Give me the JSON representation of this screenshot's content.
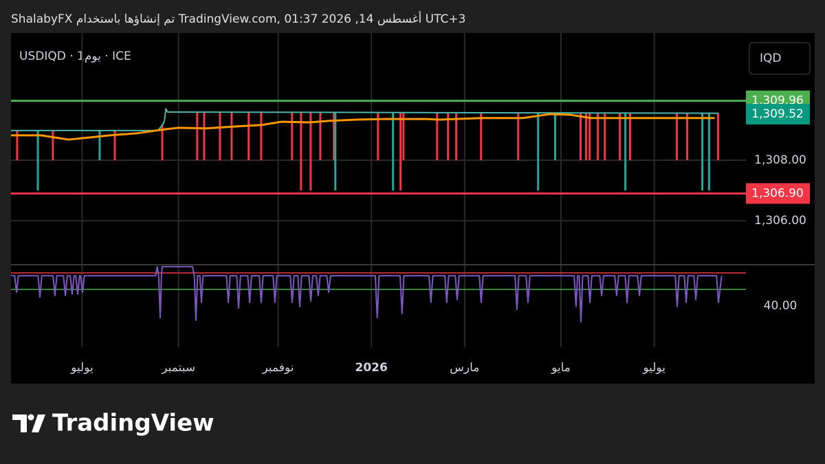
{
  "header": "ShalabyFX تم إنشاؤها باستخدام TradingView.com, 01:37 2026 ,14 أغسطس UTC+3",
  "logo": "TradingView",
  "chart_data": [
    {
      "type": "line",
      "title": "USDIQD · 1يوم · ICE",
      "currency": "IQD",
      "xlim": [
        0,
        465
      ],
      "xticks": [
        {
          "value": 45,
          "label": "يوليو"
        },
        {
          "value": 106,
          "label": "سبتمبر"
        },
        {
          "value": 169,
          "label": "نوفمبر"
        },
        {
          "value": 228,
          "label": "2026"
        },
        {
          "value": 287,
          "label": "مارس"
        },
        {
          "value": 348,
          "label": "مايو"
        },
        {
          "value": 407,
          "label": "يوليو"
        }
      ],
      "ylim": [
        1304.55,
        1312.2
      ],
      "yticks": [
        {
          "value": 1308,
          "label": "1,308.00"
        },
        {
          "value": 1306,
          "label": "1,306.00"
        }
      ],
      "grid": true,
      "hlines": [
        {
          "value": 1309.96,
          "label": "1,309.96",
          "color": "#4caf50"
        },
        {
          "value": 1306.9,
          "label": "1,306.90",
          "color": "#f23645"
        }
      ],
      "price_tags": [
        {
          "value": 1309.52,
          "label": "1,309.52",
          "color": "#089981"
        }
      ],
      "series": [
        {
          "style": "line",
          "color": "#4db6ac",
          "x": [
            0,
            93,
            95,
            97,
            98,
            99,
            447.6
          ],
          "values": [
            1308.98,
            1308.98,
            1309.11,
            1309.27,
            1309.7,
            1309.59,
            1309.55
          ]
        },
        {
          "style": "line",
          "color": "#ff9800",
          "x": [
            0,
            19.1,
            27.8,
            36.5,
            49.6,
            62.6,
            80,
            97.4,
            106.1,
            123.5,
            140.9,
            158.3,
            171.3,
            188.7,
            201.7,
            219.1,
            236.5,
            262.6,
            271.3,
            297.4,
            323.5,
            340.9,
            353.9,
            367,
            445.2
          ],
          "values": [
            1308.82,
            1308.82,
            1308.75,
            1308.68,
            1308.75,
            1308.82,
            1308.89,
            1309.02,
            1309.07,
            1309.05,
            1309.11,
            1309.16,
            1309.27,
            1309.25,
            1309.3,
            1309.34,
            1309.36,
            1309.36,
            1309.34,
            1309.39,
            1309.39,
            1309.52,
            1309.5,
            1309.39,
            1309.39
          ]
        },
        {
          "style": "spike",
          "color": "#f23645",
          "x": [
            3.9,
            26.5,
            65.7,
            95.7,
            117.8,
            122.2,
            132.2,
            139.6,
            150.4,
            158.3,
            177.8,
            183.5,
            189.6,
            195.7,
            204.3,
            232.2,
            246.5,
            248.3,
            269.6,
            276.5,
            281.7,
            297.4,
            320.9,
            360.4,
            363.9,
            366.1,
            371.3,
            375.7,
            385.2,
            391.7,
            421.3,
            427.8,
            447.4
          ],
          "values": [
            1308,
            1308,
            1308,
            1308,
            1308,
            1308,
            1308,
            1308,
            1308,
            1308,
            1308,
            1307,
            1307,
            1308,
            1308,
            1308,
            1307,
            1308,
            1308,
            1308,
            1308,
            1308,
            1308,
            1308,
            1308,
            1308,
            1308,
            1308,
            1308,
            1308,
            1308,
            1308,
            1308
          ]
        },
        {
          "style": "spike",
          "color": "#26a69a",
          "x": [
            17,
            56.1,
            205.2,
            241.7,
            333.5,
            344.3,
            388.7,
            437.4,
            441.7
          ],
          "values": [
            1307,
            1308,
            1307,
            1307,
            1307,
            1308,
            1307,
            1307,
            1307
          ]
        }
      ]
    },
    {
      "type": "line",
      "ylim": [
        15,
        65
      ],
      "yticks": [
        {
          "value": 40,
          "label": "40.00"
        }
      ],
      "hlines": [
        {
          "value": 60,
          "color": "#f23645"
        },
        {
          "value": 50,
          "color": "#4caf50"
        }
      ],
      "series": [
        {
          "style": "line",
          "color": "#7e57c2",
          "x": [
            0,
            2.3,
            3.5,
            4.7,
            17.1,
            18.3,
            19.5,
            26.6,
            27.8,
            29,
            33.2,
            34.4,
            35.6,
            37.5,
            38.7,
            39.9,
            41,
            42.2,
            43.4,
            44,
            45.2,
            46.4,
            91.5,
            92.6,
            93.4,
            94.4,
            95.2,
            95.7,
            97,
            104,
            114.8,
            116,
            117,
            118,
            119.5,
            120.5,
            121.5,
            136.3,
            137.5,
            138.7,
            142.8,
            144,
            145.2,
            149.8,
            151,
            152.2,
            157.1,
            158.3,
            159.5,
            165.8,
            167,
            168.2,
            176.7,
            177.9,
            179.1,
            181.5,
            182.7,
            183.9,
            188.5,
            189.7,
            190.9,
            193.2,
            194.4,
            195.6,
            199.8,
            201,
            202.2,
            230.5,
            231.7,
            232.9,
            246.2,
            247.4,
            248.6,
            264.5,
            265.7,
            266.9,
            274.5,
            275.7,
            276.9,
            281.1,
            282.3,
            283.5,
            296.3,
            297.5,
            298.7,
            318.9,
            320.1,
            321.3,
            325.9,
            327.1,
            328.3,
            356.3,
            357.5,
            358.5,
            359.5,
            360.6,
            361.7,
            365.1,
            366.3,
            367.5,
            372.5,
            373.7,
            374.9,
            382,
            383.2,
            384.4,
            388.6,
            389.8,
            391,
            396.4,
            397.6,
            398.8,
            420.3,
            421.5,
            422.7,
            426,
            427.2,
            428.4,
            432.1,
            433.3,
            434.5,
            446.4,
            447.6,
            449.6
          ],
          "values": [
            58.3,
            58.3,
            48.3,
            58.3,
            58.3,
            45.4,
            58.3,
            58.3,
            46.3,
            58.3,
            58.3,
            46.3,
            58.3,
            58.3,
            47.1,
            58.3,
            58.3,
            47.1,
            58.3,
            58.3,
            48.3,
            58.3,
            58.3,
            63.8,
            58.3,
            32.9,
            58.3,
            63.8,
            63.8,
            63.8,
            63.8,
            58.3,
            31.3,
            58.3,
            58.3,
            42.1,
            58.3,
            58.3,
            42.1,
            58.3,
            58.3,
            38.8,
            58.3,
            58.3,
            42.1,
            58.3,
            58.3,
            42.1,
            58.3,
            58.3,
            42.1,
            58.3,
            58.3,
            42.1,
            58.3,
            58.3,
            39.6,
            58.3,
            58.3,
            42.9,
            58.3,
            58.3,
            46.3,
            58.3,
            58.3,
            48.3,
            58.3,
            58.3,
            32.9,
            58.3,
            58.3,
            35.4,
            58.3,
            58.3,
            42.1,
            58.3,
            58.3,
            42.1,
            58.3,
            58.3,
            43.8,
            58.3,
            58.3,
            42.1,
            58.3,
            58.3,
            37.9,
            58.3,
            58.3,
            42.1,
            58.3,
            58.3,
            39.6,
            58.3,
            58.3,
            30.4,
            58.3,
            58.3,
            42.1,
            58.3,
            58.3,
            46.3,
            58.3,
            58.3,
            46.3,
            58.3,
            58.3,
            42.1,
            58.3,
            58.3,
            46.3,
            58.3,
            58.3,
            39.6,
            58.3,
            58.3,
            42.1,
            58.3,
            58.3,
            43.8,
            58.3,
            58.3,
            42.1,
            58.3
          ]
        }
      ]
    }
  ]
}
